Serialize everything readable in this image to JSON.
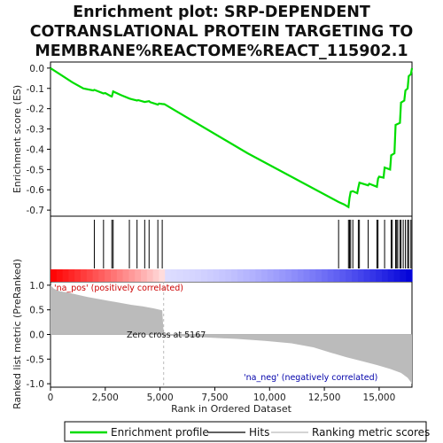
{
  "title_lines": [
    "Enrichment plot: SRP-DEPENDENT",
    "COTRANSLATIONAL PROTEIN TARGETING TO",
    "MEMBRANE%REACTOME%REACT_115902.1"
  ],
  "colors": {
    "es_line": "#00dd00",
    "metric_fill": "#bbbbbb",
    "pos_label": "#cc0000",
    "neg_label": "#0000aa",
    "zero_line": "#aaaaaa"
  },
  "annotations": {
    "pos_label": "'na_pos' (positively correlated)",
    "neg_label": "'na_neg' (negatively correlated)",
    "zero_cross": "Zero cross at 5167"
  },
  "legend": {
    "enrichment_profile": "Enrichment profile",
    "hits": "Hits",
    "ranking_metric": "Ranking metric scores"
  },
  "chart_data": [
    {
      "type": "line",
      "name": "enrichment-profile",
      "ylabel": "Enrichment score (ES)",
      "xlim": [
        0,
        16500
      ],
      "ylim": [
        -0.73,
        0.03
      ],
      "yticks": [
        0.0,
        -0.1,
        -0.2,
        -0.3,
        -0.4,
        -0.5,
        -0.6,
        -0.7
      ],
      "ytick_labels": [
        "0.0",
        "-0.1",
        "-0.2",
        "-0.3",
        "-0.4",
        "-0.5",
        "-0.6",
        "-0.7"
      ],
      "grid": false,
      "points": [
        [
          0,
          0.0
        ],
        [
          500,
          -0.035
        ],
        [
          1000,
          -0.07
        ],
        [
          1500,
          -0.1
        ],
        [
          1950,
          -0.11
        ],
        [
          2000,
          -0.107
        ],
        [
          2350,
          -0.122
        ],
        [
          2420,
          -0.125
        ],
        [
          2500,
          -0.123
        ],
        [
          2750,
          -0.138
        ],
        [
          2800,
          -0.14
        ],
        [
          2830,
          -0.128
        ],
        [
          2860,
          -0.115
        ],
        [
          3200,
          -0.132
        ],
        [
          3600,
          -0.15
        ],
        [
          3700,
          -0.153
        ],
        [
          3950,
          -0.16
        ],
        [
          4000,
          -0.158
        ],
        [
          4300,
          -0.167
        ],
        [
          4500,
          -0.163
        ],
        [
          4550,
          -0.168
        ],
        [
          4900,
          -0.18
        ],
        [
          4950,
          -0.175
        ],
        [
          5100,
          -0.177
        ],
        [
          5200,
          -0.178
        ],
        [
          9000,
          -0.42
        ],
        [
          13150,
          -0.66
        ],
        [
          13400,
          -0.672
        ],
        [
          13600,
          -0.685
        ],
        [
          13650,
          -0.64
        ],
        [
          13700,
          -0.61
        ],
        [
          13800,
          -0.607
        ],
        [
          14000,
          -0.617
        ],
        [
          14050,
          -0.59
        ],
        [
          14100,
          -0.565
        ],
        [
          14500,
          -0.578
        ],
        [
          14550,
          -0.57
        ],
        [
          14900,
          -0.585
        ],
        [
          14950,
          -0.545
        ],
        [
          15000,
          -0.535
        ],
        [
          15200,
          -0.54
        ],
        [
          15250,
          -0.49
        ],
        [
          15500,
          -0.5
        ],
        [
          15550,
          -0.43
        ],
        [
          15700,
          -0.42
        ],
        [
          15750,
          -0.28
        ],
        [
          15950,
          -0.27
        ],
        [
          16000,
          -0.17
        ],
        [
          16150,
          -0.16
        ],
        [
          16200,
          -0.11
        ],
        [
          16300,
          -0.1
        ],
        [
          16350,
          -0.04
        ],
        [
          16450,
          -0.03
        ],
        [
          16500,
          0.0
        ]
      ]
    },
    {
      "type": "bar",
      "name": "hits",
      "hit_ranks": [
        2000,
        2420,
        2800,
        2860,
        3600,
        3950,
        4300,
        4500,
        4900,
        5100,
        13150,
        13600,
        13650,
        13700,
        13800,
        14050,
        14100,
        14500,
        14900,
        14950,
        15250,
        15550,
        15600,
        15750,
        15800,
        15850,
        15950,
        16000,
        16100,
        16200,
        16300,
        16350,
        16450
      ]
    },
    {
      "type": "area",
      "name": "ranking-metric",
      "xlabel": "Rank in Ordered Dataset",
      "ylabel": "Ranked list metric (PreRanked)",
      "xlim": [
        0,
        16500
      ],
      "ylim": [
        -1.07,
        1.07
      ],
      "xticks": [
        0,
        2500,
        5000,
        7500,
        10000,
        12500,
        15000
      ],
      "xtick_labels": [
        "0",
        "2,500",
        "5,000",
        "7,500",
        "10,000",
        "12,500",
        "15,000"
      ],
      "yticks": [
        1.0,
        0.5,
        0.0,
        -0.5,
        -1.0
      ],
      "ytick_labels": [
        "1.0",
        "0.5",
        "0.0",
        "-0.5",
        "-1.0"
      ],
      "zero_cross": 5167,
      "points": [
        [
          0,
          1.0
        ],
        [
          150,
          0.93
        ],
        [
          400,
          0.88
        ],
        [
          800,
          0.85
        ],
        [
          1200,
          0.81
        ],
        [
          1700,
          0.76
        ],
        [
          2200,
          0.72
        ],
        [
          2700,
          0.68
        ],
        [
          3200,
          0.64
        ],
        [
          3700,
          0.6
        ],
        [
          4200,
          0.57
        ],
        [
          4700,
          0.53
        ],
        [
          5100,
          0.49
        ],
        [
          5167,
          0.0
        ],
        [
          5170,
          -0.02
        ],
        [
          7000,
          -0.06
        ],
        [
          8500,
          -0.09
        ],
        [
          9800,
          -0.13
        ],
        [
          11000,
          -0.18
        ],
        [
          12000,
          -0.26
        ],
        [
          12800,
          -0.37
        ],
        [
          13500,
          -0.46
        ],
        [
          14200,
          -0.54
        ],
        [
          14900,
          -0.62
        ],
        [
          15500,
          -0.7
        ],
        [
          16000,
          -0.78
        ],
        [
          16300,
          -0.88
        ],
        [
          16450,
          -0.97
        ],
        [
          16500,
          -1.0
        ]
      ]
    }
  ]
}
